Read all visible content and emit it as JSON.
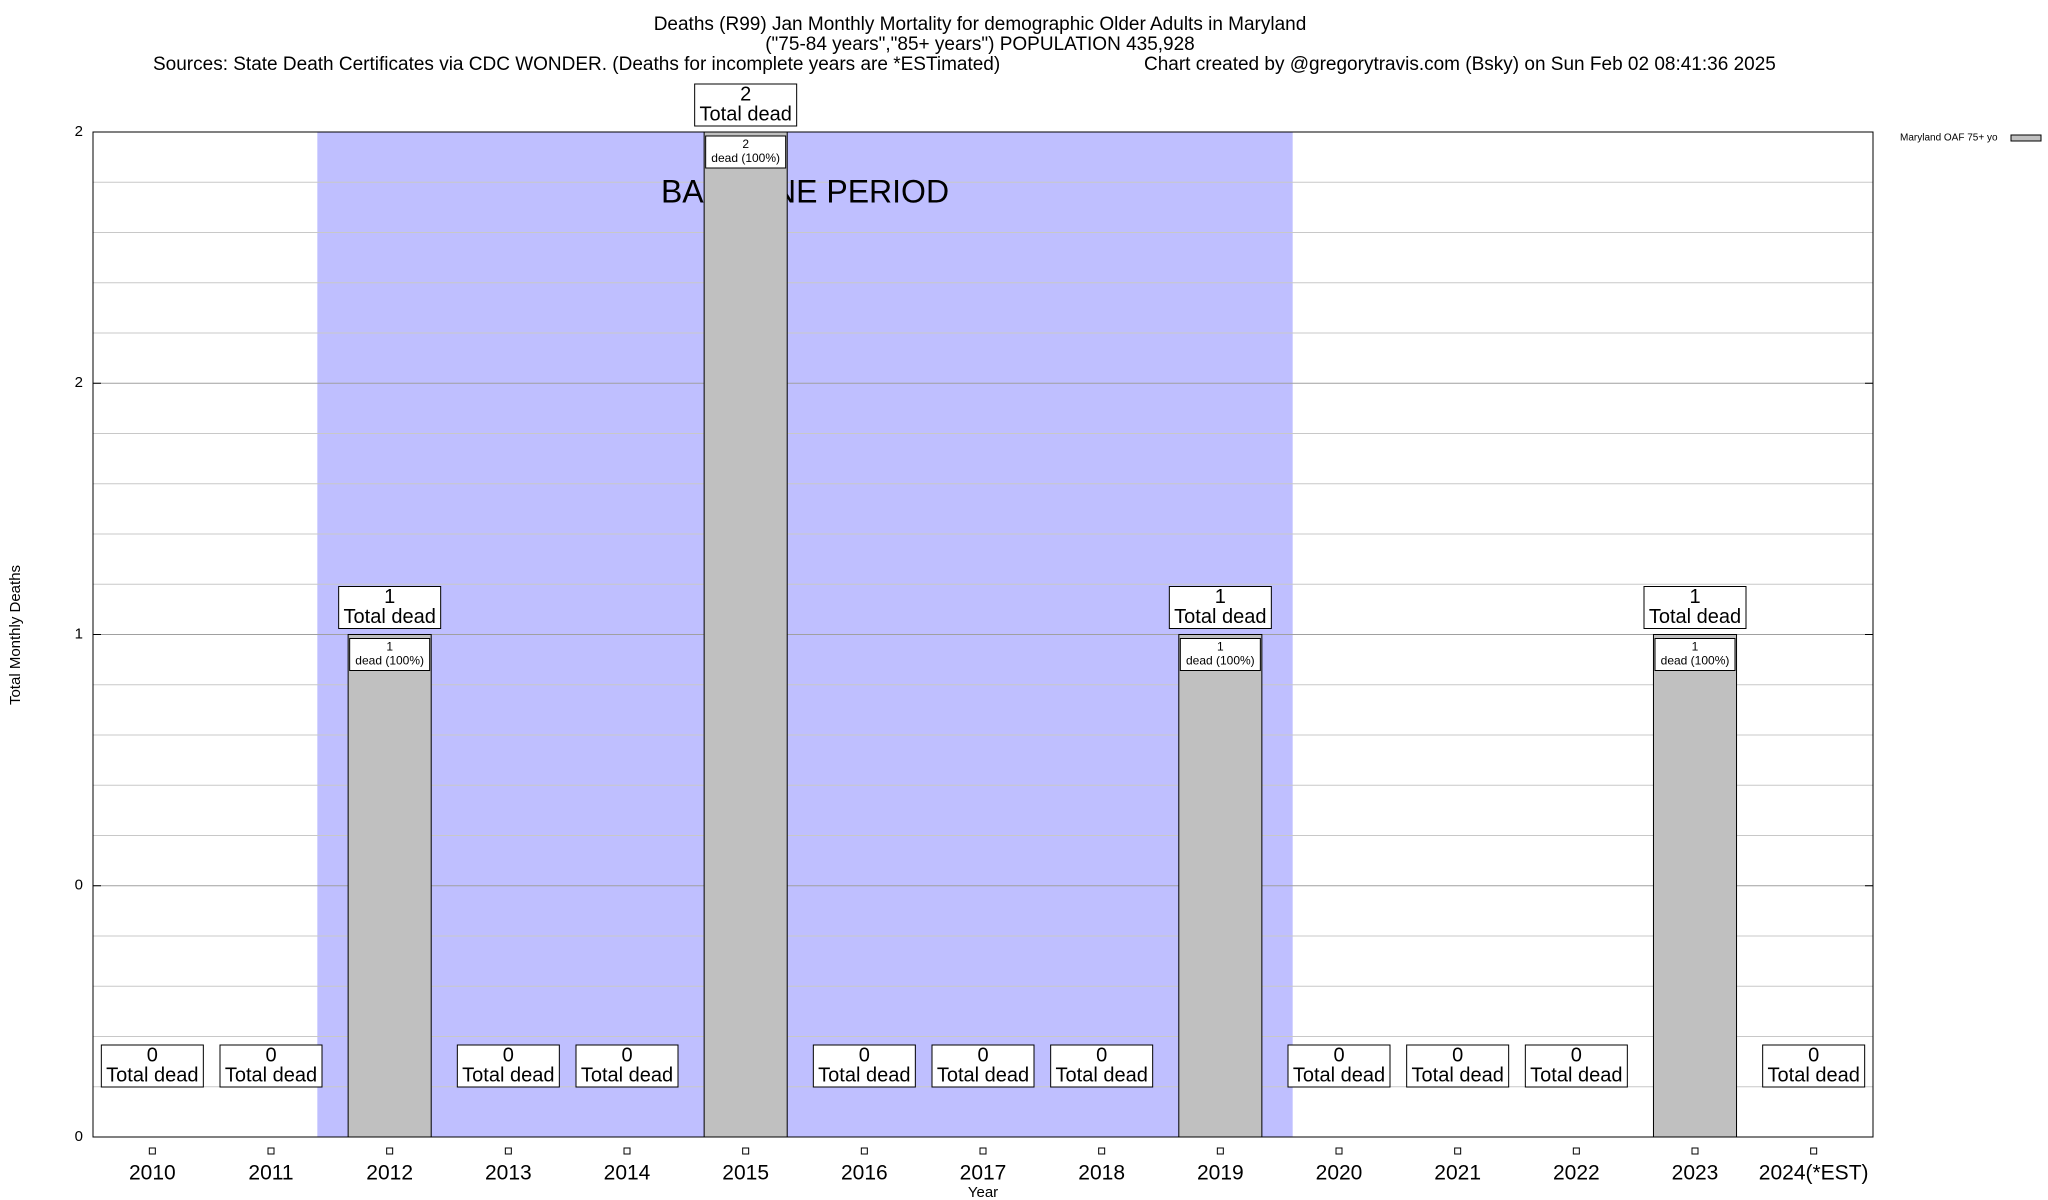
{
  "chart_data": {
    "type": "bar",
    "title": "Deaths (R99) Jan Monthly Mortality for demographic Older Adults in Maryland",
    "subtitle": "(\"75-84 years\",\"85+ years\") POPULATION 435,928",
    "sources": "Sources: State Death Certificates via CDC WONDER. (Deaths for incomplete years are *ESTimated)",
    "credit": "Chart created by @gregorytravis.com (Bsky) on Sun Feb 02 08:41:36 2025",
    "x_label": "Year",
    "y_label": "Total Monthly Deaths",
    "categories": [
      "2010",
      "2011",
      "2012",
      "2013",
      "2014",
      "2015",
      "2016",
      "2017",
      "2018",
      "2019",
      "2020",
      "2021",
      "2022",
      "2023",
      "2024(*EST)"
    ],
    "series": [
      {
        "name": "Maryland OAF 75+ yo",
        "color": "#c0c0c0",
        "values": [
          0,
          0,
          1,
          0,
          0,
          2,
          0,
          0,
          0,
          1,
          0,
          0,
          0,
          1,
          0
        ]
      }
    ],
    "total_label": "Total dead",
    "segment_label": "dead (100%)",
    "baseline": {
      "label": "BASELINE PERIOD",
      "from": "2012",
      "to": "2019",
      "color": "#bfbfff"
    },
    "ylim": [
      0,
      2
    ],
    "yticks": [
      0,
      {
        "value": 0.5,
        "label": "0"
      },
      1,
      {
        "value": 1.5,
        "label": "2"
      },
      2
    ],
    "yminorticks": [
      0.1,
      0.2,
      0.3,
      0.4,
      0.6,
      0.7,
      0.8,
      0.9,
      1.1,
      1.2,
      1.3,
      1.4,
      1.6,
      1.7,
      1.8,
      1.9
    ],
    "grid": true,
    "legend": "right"
  }
}
